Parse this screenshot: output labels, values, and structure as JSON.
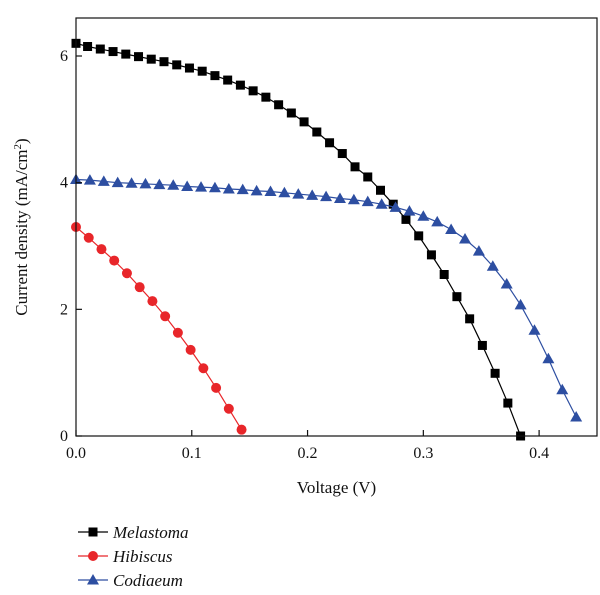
{
  "chart_data": {
    "type": "line",
    "xlabel": "Voltage (V)",
    "ylabel": "Current density (mA/cm",
    "ylabel_sup": "2",
    "ylabel_close": ")",
    "xlim": [
      0.0,
      0.45
    ],
    "ylim": [
      0,
      6.6
    ],
    "xticks": [
      0.0,
      0.1,
      0.2,
      0.3,
      0.4
    ],
    "xtick_labels": [
      "0.0",
      "0.1",
      "0.2",
      "0.3",
      "0.4"
    ],
    "yticks": [
      0,
      2,
      4,
      6
    ],
    "ytick_labels": [
      "0",
      "2",
      "4",
      "6"
    ],
    "grid": false,
    "legend_position": "below",
    "series": [
      {
        "name": "Melastoma",
        "color": "#000000",
        "marker": "square",
        "x": [
          0.0,
          0.01,
          0.021,
          0.032,
          0.043,
          0.054,
          0.065,
          0.076,
          0.087,
          0.098,
          0.109,
          0.12,
          0.131,
          0.142,
          0.153,
          0.164,
          0.175,
          0.186,
          0.197,
          0.208,
          0.219,
          0.23,
          0.241,
          0.252,
          0.263,
          0.274,
          0.285,
          0.296,
          0.307,
          0.318,
          0.329,
          0.34,
          0.351,
          0.362,
          0.373,
          0.384
        ],
        "y": [
          6.2,
          6.15,
          6.11,
          6.07,
          6.03,
          5.99,
          5.95,
          5.91,
          5.86,
          5.81,
          5.76,
          5.69,
          5.62,
          5.54,
          5.45,
          5.35,
          5.23,
          5.1,
          4.96,
          4.8,
          4.63,
          4.46,
          4.25,
          4.09,
          3.88,
          3.66,
          3.42,
          3.16,
          2.86,
          2.55,
          2.2,
          1.85,
          1.43,
          0.99,
          0.52,
          0.0
        ]
      },
      {
        "name": "Hibiscus",
        "color": "#e8262a",
        "marker": "circle",
        "x": [
          0.0,
          0.011,
          0.022,
          0.033,
          0.044,
          0.055,
          0.066,
          0.077,
          0.088,
          0.099,
          0.11,
          0.121,
          0.132,
          0.143
        ],
        "y": [
          3.3,
          3.13,
          2.95,
          2.77,
          2.57,
          2.35,
          2.13,
          1.89,
          1.63,
          1.36,
          1.07,
          0.76,
          0.43,
          0.1
        ]
      },
      {
        "name": "Codiaeum",
        "color": "#2d4ea1",
        "marker": "triangle",
        "x": [
          0.0,
          0.012,
          0.024,
          0.036,
          0.048,
          0.06,
          0.072,
          0.084,
          0.096,
          0.108,
          0.12,
          0.132,
          0.144,
          0.156,
          0.168,
          0.18,
          0.192,
          0.204,
          0.216,
          0.228,
          0.24,
          0.252,
          0.264,
          0.276,
          0.288,
          0.3,
          0.312,
          0.324,
          0.336,
          0.348,
          0.36,
          0.372,
          0.384,
          0.396,
          0.408,
          0.42,
          0.432
        ],
        "y": [
          4.05,
          4.04,
          4.02,
          4.0,
          3.99,
          3.98,
          3.97,
          3.96,
          3.94,
          3.93,
          3.92,
          3.9,
          3.89,
          3.87,
          3.86,
          3.84,
          3.82,
          3.8,
          3.78,
          3.75,
          3.73,
          3.7,
          3.66,
          3.61,
          3.55,
          3.47,
          3.38,
          3.26,
          3.11,
          2.92,
          2.68,
          2.4,
          2.07,
          1.67,
          1.22,
          0.73,
          0.3
        ]
      }
    ]
  }
}
